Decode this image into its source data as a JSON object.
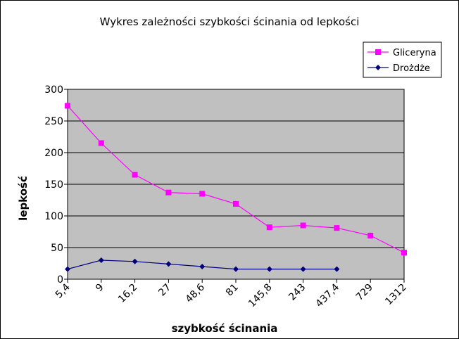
{
  "chart_data": {
    "type": "line",
    "title": "Wykres zależności szybkości ścinania od lepkości",
    "xlabel": "szybkość ścinania",
    "ylabel": "lepkość",
    "categories": [
      "5,4",
      "9",
      "16,2",
      "27",
      "48,6",
      "81",
      "145,8",
      "243",
      "437,4",
      "729",
      "1312"
    ],
    "ylim": [
      0,
      300
    ],
    "yticks": [
      "0",
      "50",
      "100",
      "150",
      "200",
      "250",
      "300"
    ],
    "grid": true,
    "legend_position": "top-right",
    "plot_background": "#c0c0c0",
    "series": [
      {
        "name": "Gliceryna",
        "color": "#ff00ff",
        "marker": "square",
        "values": [
          274,
          215,
          165,
          137,
          135,
          119,
          82,
          85,
          81,
          69,
          42
        ]
      },
      {
        "name": "Drożdże",
        "color": "#000080",
        "marker": "diamond",
        "values": [
          16,
          30,
          28,
          24,
          20,
          16,
          16,
          16,
          16,
          null,
          null
        ]
      }
    ]
  }
}
